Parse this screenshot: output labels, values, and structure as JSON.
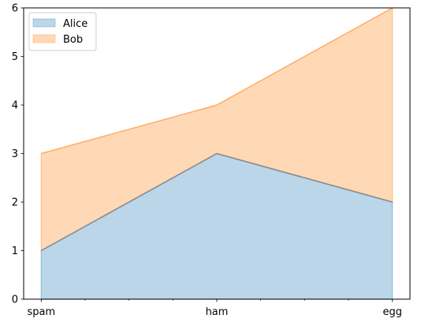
{
  "chart_data": {
    "type": "area",
    "stacked": true,
    "categories": [
      "spam",
      "ham",
      "egg"
    ],
    "series": [
      {
        "name": "Alice",
        "values": [
          1,
          3,
          2
        ],
        "color": "#1f77b4"
      },
      {
        "name": "Bob",
        "values": [
          2,
          1,
          4
        ],
        "color": "#ff7f0e"
      }
    ],
    "ylim": [
      0,
      6
    ],
    "yticks": [
      0,
      1,
      2,
      3,
      4,
      5,
      6
    ],
    "grid": false,
    "legend": "top-left"
  }
}
